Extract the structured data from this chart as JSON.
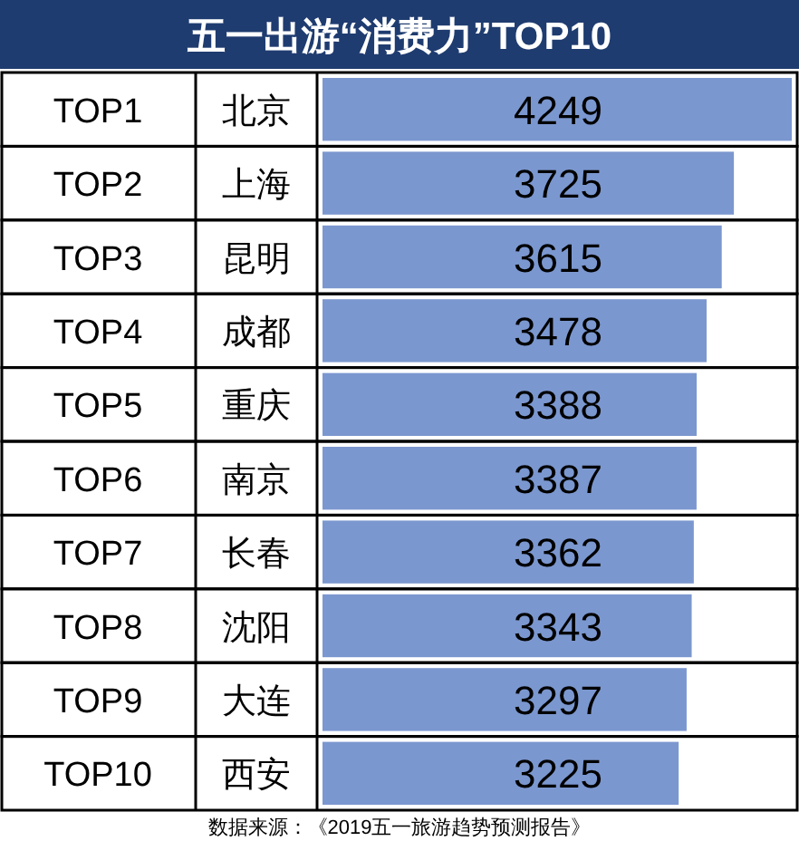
{
  "chart_data": {
    "type": "bar",
    "orientation": "horizontal",
    "title": "五一出游“消费力”TOP10",
    "categories": [
      "北京",
      "上海",
      "昆明",
      "成都",
      "重庆",
      "南京",
      "长春",
      "沈阳",
      "大连",
      "西安"
    ],
    "values": [
      4249,
      3725,
      3615,
      3478,
      3388,
      3387,
      3362,
      3343,
      3297,
      3225
    ],
    "color": "#7b97cf",
    "data_labels": true,
    "annotations": [
      "TOP1",
      "TOP2",
      "TOP3",
      "TOP4",
      "TOP5",
      "TOP6",
      "TOP7",
      "TOP8",
      "TOP9",
      "TOP10",
      "数据来源：《2019五一旅游趋势预测报告》"
    ]
  }
}
